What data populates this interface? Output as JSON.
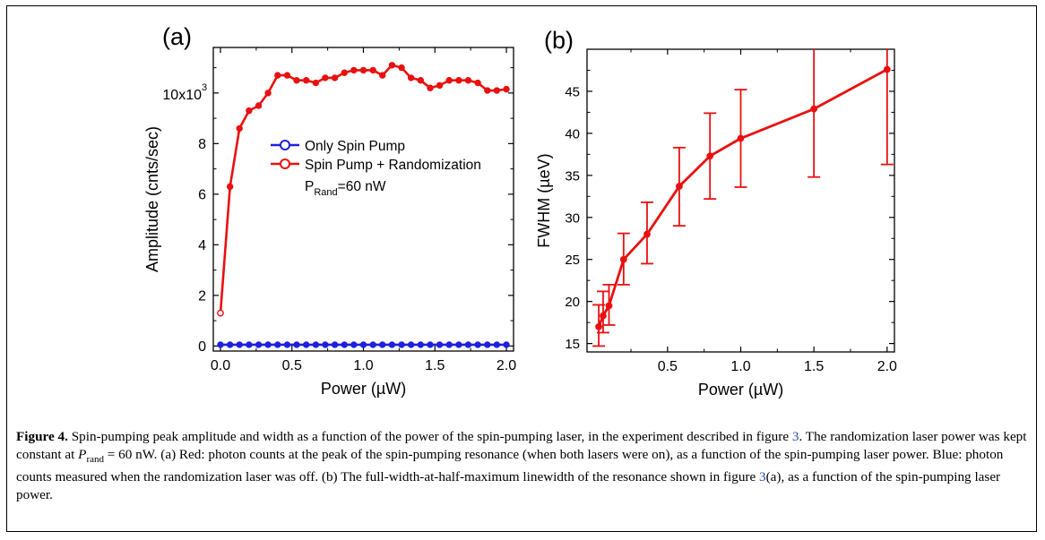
{
  "chart_data": [
    {
      "panel_label": "(a)",
      "type": "line",
      "xlabel": "Power (µW)",
      "ylabel": "Amplitude (cnts/sec)",
      "xlim": [
        -0.05,
        2.05
      ],
      "ylim": [
        -0.2,
        11.8
      ],
      "y_multiplier_label": "10x10",
      "y_multiplier_exp": "3",
      "xticks": [
        "0.0",
        "0.5",
        "1.0",
        "1.5",
        "2.0"
      ],
      "xtick_values": [
        0,
        0.5,
        1.0,
        1.5,
        2.0
      ],
      "yticks": [
        "0",
        "2",
        "4",
        "6",
        "8"
      ],
      "ytick_values": [
        0,
        2,
        4,
        6,
        8
      ],
      "annotation_main": "P",
      "annotation_sub": "Rand",
      "annotation_rest": "=60 nW",
      "series": [
        {
          "name": "Only Spin Pump",
          "color": "#1f1fe0",
          "x": [
            0.0,
            0.067,
            0.133,
            0.2,
            0.267,
            0.333,
            0.4,
            0.467,
            0.533,
            0.6,
            0.667,
            0.733,
            0.8,
            0.867,
            0.933,
            1.0,
            1.067,
            1.133,
            1.2,
            1.267,
            1.333,
            1.4,
            1.467,
            1.533,
            1.6,
            1.667,
            1.733,
            1.8,
            1.867,
            1.933,
            2.0
          ],
          "y": [
            0.05,
            0.05,
            0.05,
            0.05,
            0.05,
            0.05,
            0.05,
            0.05,
            0.05,
            0.05,
            0.05,
            0.05,
            0.05,
            0.05,
            0.05,
            0.05,
            0.05,
            0.05,
            0.05,
            0.05,
            0.05,
            0.05,
            0.05,
            0.05,
            0.05,
            0.05,
            0.05,
            0.05,
            0.05,
            0.05,
            0.05
          ]
        },
        {
          "name": "Spin Pump + Randomization",
          "color": "#e81010",
          "x": [
            0.0,
            0.067,
            0.133,
            0.2,
            0.267,
            0.333,
            0.4,
            0.467,
            0.533,
            0.6,
            0.667,
            0.733,
            0.8,
            0.867,
            0.933,
            1.0,
            1.067,
            1.133,
            1.2,
            1.267,
            1.333,
            1.4,
            1.467,
            1.533,
            1.6,
            1.667,
            1.733,
            1.8,
            1.867,
            1.933,
            2.0
          ],
          "y": [
            1.3,
            6.3,
            8.6,
            9.3,
            9.5,
            10.0,
            10.7,
            10.7,
            10.5,
            10.5,
            10.4,
            10.6,
            10.6,
            10.8,
            10.9,
            10.9,
            10.9,
            10.7,
            11.1,
            11.0,
            10.6,
            10.5,
            10.2,
            10.3,
            10.5,
            10.5,
            10.5,
            10.4,
            10.1,
            10.1,
            10.15
          ]
        }
      ]
    },
    {
      "panel_label": "(b)",
      "type": "line",
      "xlabel": "Power (µW)",
      "ylabel": "FWHM (µeV)",
      "xlim": [
        -0.05,
        2.05
      ],
      "ylim": [
        14,
        50
      ],
      "xticks": [
        "0.5",
        "1.0",
        "1.5",
        "2.0"
      ],
      "xtick_values": [
        0.5,
        1.0,
        1.5,
        2.0
      ],
      "yticks": [
        "15",
        "20",
        "25",
        "30",
        "35",
        "40",
        "45"
      ],
      "ytick_values": [
        15,
        20,
        25,
        30,
        35,
        40,
        45
      ],
      "series": [
        {
          "color": "#e81010",
          "x": [
            0.03,
            0.06,
            0.1,
            0.2,
            0.36,
            0.58,
            0.79,
            1.0,
            1.5,
            2.0
          ],
          "y": [
            17.0,
            18.3,
            19.5,
            25.0,
            28.0,
            33.7,
            37.3,
            39.4,
            42.9,
            47.6
          ],
          "err_low": [
            14.7,
            16.3,
            17.2,
            22.0,
            24.5,
            29.0,
            32.2,
            33.6,
            34.8,
            36.3
          ],
          "err_high": [
            19.6,
            21.2,
            22.0,
            28.1,
            31.8,
            38.3,
            42.4,
            45.2,
            50.5,
            50.5
          ]
        }
      ]
    }
  ],
  "caption": {
    "label": "Figure 4.",
    "t1": " Spin-pumping peak amplitude and width as a function of the power of the spin-pumping laser, in the experiment described in figure ",
    "ref1": "3",
    "t2": ". The randomization laser power was kept constant at ",
    "math_p": "P",
    "math_sub": "rand",
    "t3": " = 60 nW. (a) Red: photon counts at the peak of the spin-pumping resonance (when both lasers were on), as a function of the spin-pumping laser power. Blue: photon counts measured when the randomization laser was off. (b) The full-width-at-half-maximum linewidth of the resonance shown in figure ",
    "ref2": "3",
    "t4": "(a), as a function of the spin-pumping laser power."
  }
}
